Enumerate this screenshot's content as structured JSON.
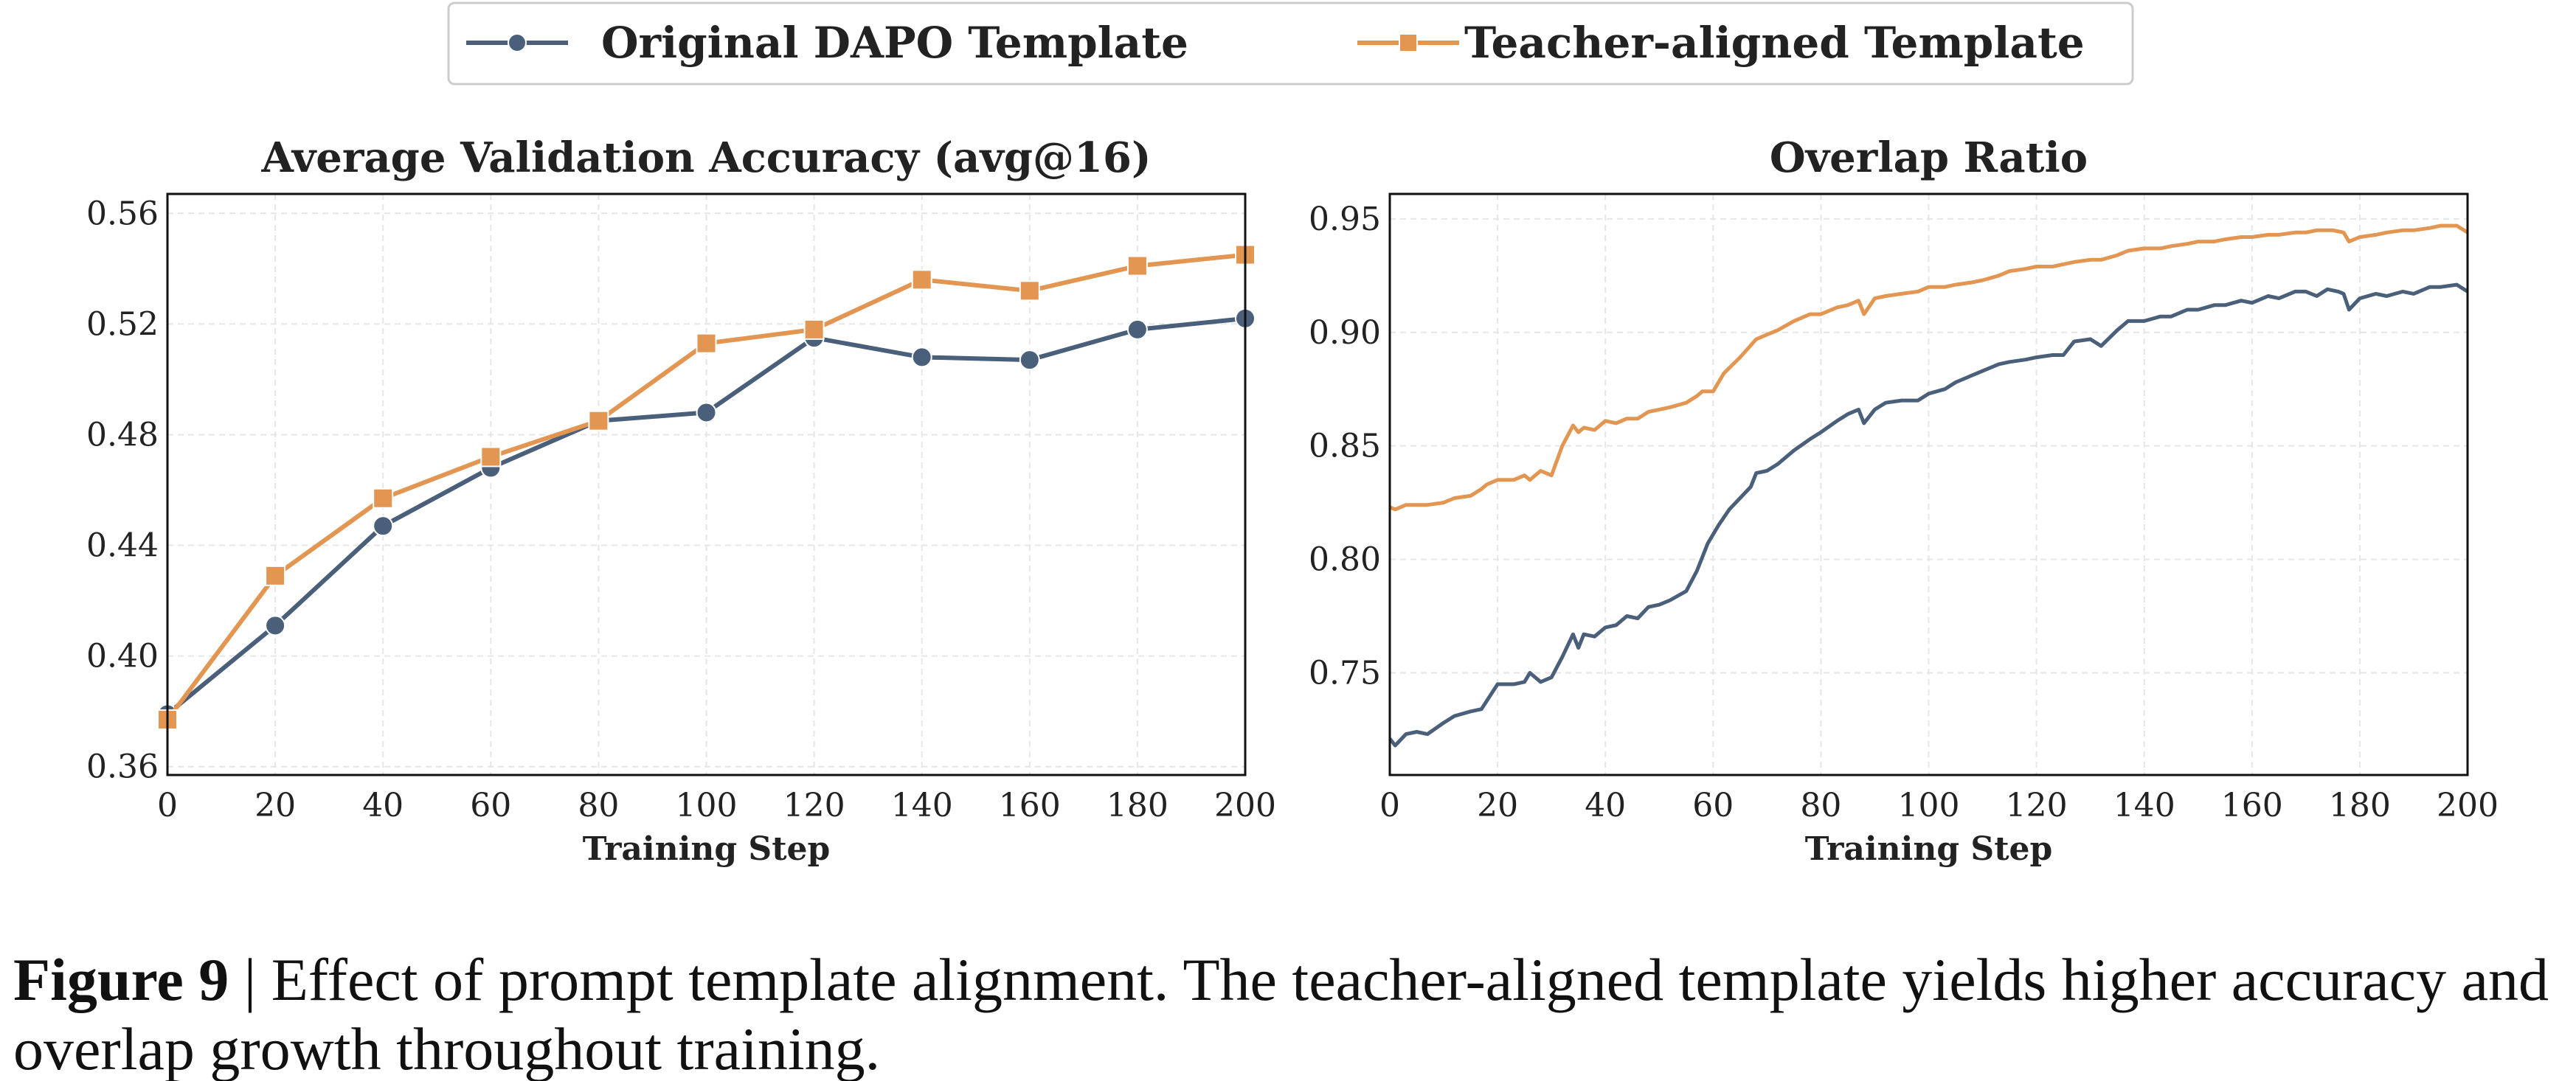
{
  "legend": {
    "series_a": "Original DAPO Template",
    "series_b": "Teacher-aligned Template"
  },
  "colors": {
    "series_a": "#4a5f7a",
    "series_b": "#e39552"
  },
  "caption": {
    "label": "Figure 9",
    "separator": "|",
    "text": "Effect of prompt template alignment. The teacher-aligned template yields higher accuracy and overlap growth throughout training."
  },
  "chart_data": [
    {
      "type": "line",
      "title": "Average Validation Accuracy (avg@16)",
      "xlabel": "Training Step",
      "ylabel": "",
      "xlim": [
        0,
        200
      ],
      "ylim": [
        0.357,
        0.567
      ],
      "xticks": [
        "0",
        "20",
        "40",
        "60",
        "80",
        "100",
        "120",
        "140",
        "160",
        "180",
        "200"
      ],
      "yticks": [
        "0.36",
        "0.40",
        "0.44",
        "0.48",
        "0.52",
        "0.56"
      ],
      "grid": true,
      "markers": true,
      "x": [
        0,
        20,
        40,
        60,
        80,
        100,
        120,
        140,
        160,
        180,
        200
      ],
      "series": [
        {
          "name": "Original DAPO Template",
          "marker": "circle",
          "values": [
            0.379,
            0.411,
            0.447,
            0.468,
            0.485,
            0.488,
            0.515,
            0.508,
            0.507,
            0.518,
            0.522
          ]
        },
        {
          "name": "Teacher-aligned Template",
          "marker": "square",
          "values": [
            0.377,
            0.429,
            0.457,
            0.472,
            0.485,
            0.513,
            0.518,
            0.536,
            0.532,
            0.541,
            0.545
          ]
        }
      ]
    },
    {
      "type": "line",
      "title": "Overlap Ratio",
      "xlabel": "Training Step",
      "ylabel": "",
      "xlim": [
        0,
        200
      ],
      "ylim": [
        0.705,
        0.961
      ],
      "xticks": [
        "0",
        "20",
        "40",
        "60",
        "80",
        "100",
        "120",
        "140",
        "160",
        "180",
        "200"
      ],
      "yticks": [
        "0.75",
        "0.80",
        "0.85",
        "0.90",
        "0.95"
      ],
      "grid": true,
      "markers": false,
      "series": [
        {
          "name": "Original DAPO Template",
          "x": [
            0,
            1,
            3,
            5,
            7,
            10,
            12,
            15,
            17,
            20,
            23,
            25,
            26,
            28,
            30,
            32,
            34,
            35,
            36,
            38,
            40,
            42,
            44,
            46,
            48,
            50,
            52,
            55,
            57,
            59,
            61,
            63,
            65,
            67,
            68,
            70,
            72,
            75,
            78,
            80,
            83,
            85,
            87,
            88,
            90,
            92,
            95,
            98,
            100,
            103,
            105,
            108,
            110,
            113,
            115,
            118,
            120,
            123,
            125,
            127,
            130,
            132,
            135,
            137,
            140,
            143,
            145,
            148,
            150,
            153,
            155,
            158,
            160,
            163,
            165,
            168,
            170,
            172,
            174,
            176,
            177,
            178,
            180,
            183,
            185,
            188,
            190,
            193,
            195,
            198,
            200
          ],
          "values": [
            0.721,
            0.718,
            0.723,
            0.724,
            0.723,
            0.728,
            0.731,
            0.733,
            0.734,
            0.745,
            0.745,
            0.746,
            0.75,
            0.746,
            0.748,
            0.757,
            0.767,
            0.761,
            0.767,
            0.766,
            0.77,
            0.771,
            0.775,
            0.774,
            0.779,
            0.78,
            0.782,
            0.786,
            0.795,
            0.807,
            0.815,
            0.822,
            0.827,
            0.832,
            0.838,
            0.839,
            0.842,
            0.848,
            0.853,
            0.856,
            0.861,
            0.864,
            0.866,
            0.86,
            0.866,
            0.869,
            0.87,
            0.87,
            0.873,
            0.875,
            0.878,
            0.881,
            0.883,
            0.886,
            0.887,
            0.888,
            0.889,
            0.89,
            0.89,
            0.896,
            0.897,
            0.894,
            0.901,
            0.905,
            0.905,
            0.907,
            0.907,
            0.91,
            0.91,
            0.912,
            0.912,
            0.914,
            0.913,
            0.916,
            0.915,
            0.918,
            0.918,
            0.916,
            0.919,
            0.918,
            0.917,
            0.91,
            0.915,
            0.917,
            0.916,
            0.918,
            0.917,
            0.92,
            0.92,
            0.921,
            0.918
          ]
        },
        {
          "name": "Teacher-aligned Template",
          "x": [
            0,
            1,
            3,
            5,
            7,
            10,
            12,
            15,
            17,
            18,
            20,
            23,
            25,
            26,
            28,
            30,
            32,
            34,
            35,
            36,
            38,
            40,
            42,
            44,
            46,
            48,
            50,
            52,
            55,
            57,
            58,
            60,
            62,
            65,
            68,
            70,
            72,
            75,
            78,
            80,
            83,
            85,
            87,
            88,
            90,
            92,
            95,
            98,
            100,
            103,
            105,
            108,
            110,
            113,
            115,
            118,
            120,
            123,
            125,
            127,
            130,
            132,
            135,
            137,
            140,
            143,
            145,
            148,
            150,
            153,
            155,
            158,
            160,
            163,
            165,
            168,
            170,
            172,
            175,
            177,
            178,
            180,
            183,
            185,
            188,
            190,
            193,
            195,
            198,
            200
          ],
          "values": [
            0.823,
            0.822,
            0.824,
            0.824,
            0.824,
            0.825,
            0.827,
            0.828,
            0.831,
            0.833,
            0.835,
            0.835,
            0.837,
            0.835,
            0.839,
            0.837,
            0.85,
            0.859,
            0.856,
            0.858,
            0.857,
            0.861,
            0.86,
            0.862,
            0.862,
            0.865,
            0.866,
            0.867,
            0.869,
            0.872,
            0.874,
            0.874,
            0.882,
            0.889,
            0.897,
            0.899,
            0.901,
            0.905,
            0.908,
            0.908,
            0.911,
            0.912,
            0.914,
            0.908,
            0.915,
            0.916,
            0.917,
            0.918,
            0.92,
            0.92,
            0.921,
            0.922,
            0.923,
            0.925,
            0.927,
            0.928,
            0.929,
            0.929,
            0.93,
            0.931,
            0.932,
            0.932,
            0.934,
            0.936,
            0.937,
            0.937,
            0.938,
            0.939,
            0.94,
            0.94,
            0.941,
            0.942,
            0.942,
            0.943,
            0.943,
            0.944,
            0.944,
            0.945,
            0.945,
            0.944,
            0.94,
            0.942,
            0.943,
            0.944,
            0.945,
            0.945,
            0.946,
            0.947,
            0.947,
            0.944
          ]
        }
      ]
    }
  ]
}
